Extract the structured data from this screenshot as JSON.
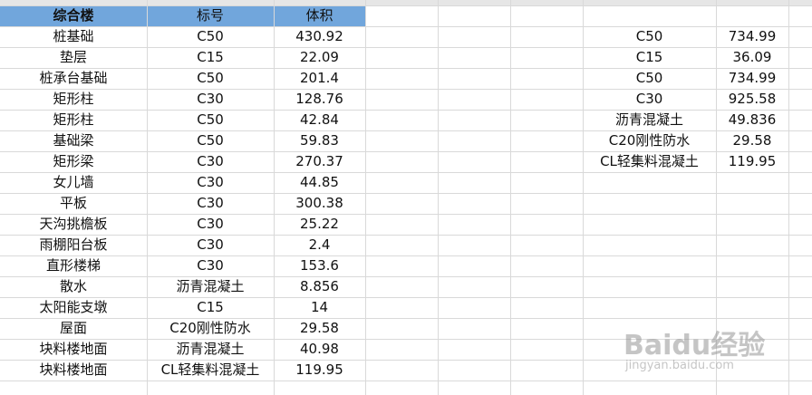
{
  "table": {
    "header": [
      "综合楼",
      "标号",
      "体积"
    ],
    "rows": [
      [
        "桩基础",
        "C50",
        430.92
      ],
      [
        "垫层",
        "C15",
        22.09
      ],
      [
        "桩承台基础",
        "C50",
        201.4
      ],
      [
        "矩形柱",
        "C30",
        128.76
      ],
      [
        "矩形柱",
        "C50",
        42.84
      ],
      [
        "基础梁",
        "C50",
        59.83
      ],
      [
        "矩形梁",
        "C30",
        270.37
      ],
      [
        "女儿墙",
        "C30",
        44.85
      ],
      [
        "平板",
        "C30",
        300.38
      ],
      [
        "天沟挑檐板",
        "C30",
        25.22
      ],
      [
        "雨棚阳台板",
        "C30",
        2.4
      ],
      [
        "直形楼梯",
        "C30",
        153.6
      ],
      [
        "散水",
        "沥青混凝土",
        8.856
      ],
      [
        "太阳能支墩",
        "C15",
        14
      ],
      [
        "屋面",
        "C20刚性防水",
        29.58
      ],
      [
        "块料楼地面",
        "沥青混凝土",
        40.98
      ],
      [
        "块料楼地面",
        "CL轻集料混凝土",
        119.95
      ]
    ]
  },
  "side_table": {
    "rows": [
      [
        "C50",
        734.99
      ],
      [
        "C15",
        36.09
      ],
      [
        "C50",
        734.99
      ],
      [
        "C30",
        925.58
      ],
      [
        "沥青混凝土",
        49.836
      ],
      [
        "C20刚性防水",
        29.58
      ],
      [
        "CL轻集料混凝土",
        119.95
      ]
    ]
  },
  "watermark": {
    "brand": "Baidu经验",
    "url": "jingyan.baidu.com"
  }
}
